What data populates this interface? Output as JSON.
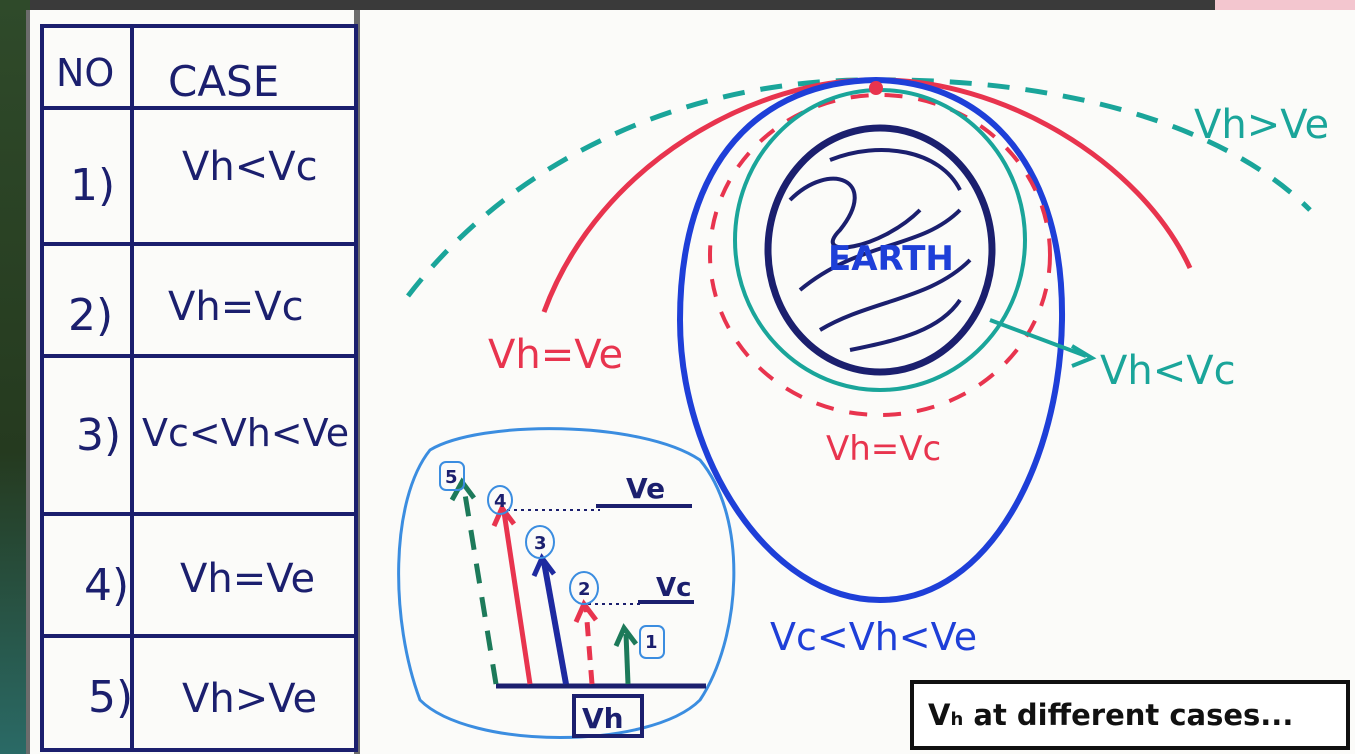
{
  "table": {
    "header_no": "NO",
    "header_case": "CASE",
    "rows": [
      {
        "no": "1)",
        "case": "Vh<Vc"
      },
      {
        "no": "2)",
        "case": "Vh=Vc"
      },
      {
        "no": "3)",
        "case": "Vc<Vh<Ve"
      },
      {
        "no": "4)",
        "case": "Vh=Ve"
      },
      {
        "no": "5)",
        "case": "Vh>Ve"
      }
    ]
  },
  "diagram": {
    "earth_label": "EARTH",
    "labels": {
      "escape_hyperbola": "Vh>Ve",
      "parabola": "Vh=Ve",
      "below_circular": "Vh<Vc",
      "circular": "Vh=Vc",
      "ellipse": "Vc<Vh<Ve"
    },
    "colors": {
      "teal": "#1aa59a",
      "red": "#e8344e",
      "blue": "#1e3fd8",
      "navy": "#1b1f6e",
      "sky": "#3b8de0"
    }
  },
  "inset": {
    "ve_label": "Ve",
    "vc_label": "Vc",
    "vh_label": "Vh",
    "markers": [
      "1",
      "2",
      "3",
      "4",
      "5"
    ]
  },
  "caption": {
    "main": "V",
    "sub": "h",
    "rest": " at different cases..."
  }
}
